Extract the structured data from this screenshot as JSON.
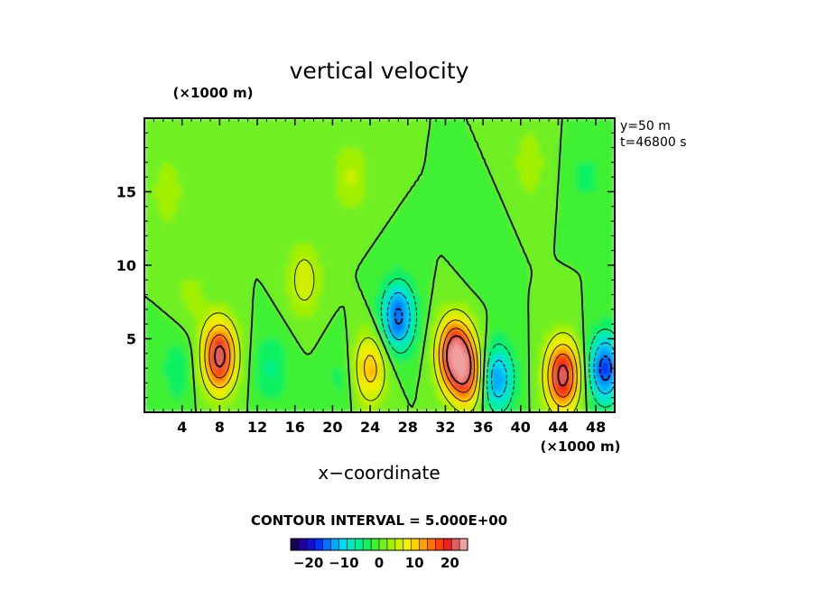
{
  "chart_data": {
    "type": "heatmap",
    "title": "vertical velocity",
    "xlabel": "x−coordinate",
    "y_units": "(×1000 m)",
    "x_units": "(×1000 m)",
    "info_lines": [
      "y=50 m",
      "t=46800 s"
    ],
    "xlim": [
      0,
      50
    ],
    "ylim": [
      0,
      20
    ],
    "x_ticks": [
      4,
      8,
      12,
      16,
      20,
      24,
      28,
      32,
      36,
      40,
      44,
      48
    ],
    "y_ticks": [
      5,
      10,
      15
    ],
    "contour_interval_text": "CONTOUR INTERVAL = 5.000E+00",
    "colorbar": {
      "min": -25,
      "max": 25,
      "tick_values": [
        -20,
        -10,
        0,
        10,
        20
      ],
      "tick_labels": [
        "−20",
        "−10",
        "0",
        "10",
        "20"
      ],
      "colors": [
        "#1a0050",
        "#2000a0",
        "#1010d0",
        "#0030ff",
        "#0070ff",
        "#00a8ff",
        "#00d8f0",
        "#00e8c0",
        "#00f090",
        "#10f060",
        "#40f030",
        "#70f020",
        "#a0f000",
        "#d0f000",
        "#f0f000",
        "#ffd000",
        "#ffa000",
        "#ff7000",
        "#ff4000",
        "#f02020",
        "#e06060",
        "#f0a0a0"
      ]
    },
    "features": [
      {
        "x": 8,
        "y": 3.8,
        "w": 22
      },
      {
        "x": 2.5,
        "y": 15,
        "w": 4
      },
      {
        "x": 5,
        "y": 8,
        "w": 3
      },
      {
        "x": 3.5,
        "y": 3,
        "w": -4
      },
      {
        "x": 13.5,
        "y": 3,
        "w": -5
      },
      {
        "x": 17,
        "y": 9,
        "w": 7
      },
      {
        "x": 21,
        "y": 2.5,
        "w": -3
      },
      {
        "x": 24,
        "y": 3,
        "w": 12
      },
      {
        "x": 22,
        "y": 16,
        "w": 5
      },
      {
        "x": 27,
        "y": 6.5,
        "w": -16
      },
      {
        "x": 33,
        "y": 4,
        "w": 23
      },
      {
        "x": 34.5,
        "y": 2.5,
        "w": 14
      },
      {
        "x": 37.5,
        "y": 2.3,
        "w": -14
      },
      {
        "x": 41,
        "y": 17,
        "w": 4
      },
      {
        "x": 44.5,
        "y": 2.5,
        "w": 22
      },
      {
        "x": 49,
        "y": 3,
        "w": -17
      },
      {
        "x": 47,
        "y": 16,
        "w": -3
      },
      {
        "x": 36,
        "y": 11,
        "w": -2
      }
    ]
  }
}
